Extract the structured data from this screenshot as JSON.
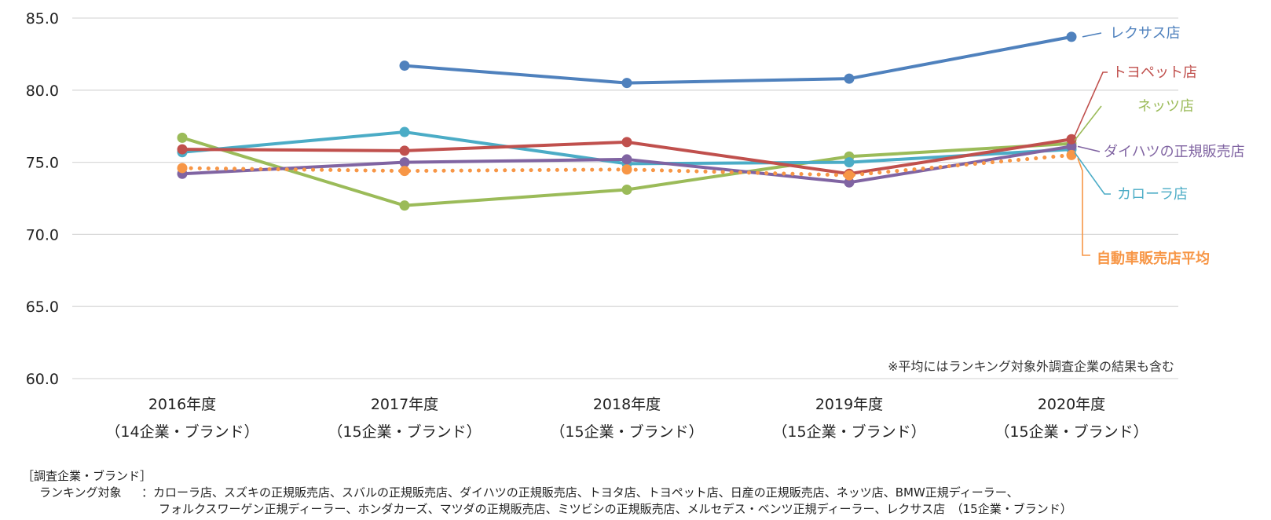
{
  "chart_data": {
    "type": "line",
    "title": "",
    "categories": [
      "2016年度",
      "2017年度",
      "2018年度",
      "2019年度",
      "2020年度"
    ],
    "category_sublabels": [
      "（14企業・ブランド）",
      "（15企業・ブランド）",
      "（15企業・ブランド）",
      "（15企業・ブランド）",
      "（15企業・ブランド）"
    ],
    "ylim": [
      60.0,
      85.0
    ],
    "yticks": [
      "60.0",
      "65.0",
      "70.0",
      "75.0",
      "80.0",
      "85.0"
    ],
    "grid": true,
    "series": [
      {
        "name": "レクサス店",
        "color": "#4F81BD",
        "style": "solid",
        "values": [
          null,
          81.7,
          80.5,
          80.8,
          83.7
        ]
      },
      {
        "name": "トヨペット店",
        "color": "#C0504D",
        "style": "solid",
        "values": [
          75.9,
          75.8,
          76.4,
          74.2,
          76.6
        ]
      },
      {
        "name": "ネッツ店",
        "color": "#9BBB59",
        "style": "solid",
        "values": [
          76.7,
          72.0,
          73.1,
          75.4,
          76.3
        ]
      },
      {
        "name": "ダイハツの正規販売店",
        "color": "#8064A2",
        "style": "solid",
        "values": [
          74.2,
          75.0,
          75.2,
          73.6,
          76.1
        ]
      },
      {
        "name": "カローラ店",
        "color": "#4BACC6",
        "style": "solid",
        "values": [
          75.7,
          77.1,
          74.9,
          75.0,
          75.9
        ]
      },
      {
        "name": "自動車販売店平均",
        "color": "#F79646",
        "style": "dotted",
        "values": [
          74.6,
          74.4,
          74.5,
          74.1,
          75.5
        ]
      }
    ],
    "note": "※平均にはランキング対象外調査企業の結果も含む"
  },
  "footer": {
    "heading": "［調査企業・ブランド］",
    "label": "ランキング対象",
    "line1": "：カローラ店、スズキの正規販売店、スバルの正規販売店、ダイハツの正規販売店、トヨタ店、トヨペット店、日産の正規販売店、ネッツ店、BMW正規ディーラー、",
    "line2": "フォルクスワーゲン正規ディーラー、ホンダカーズ、マツダの正規販売店、ミツビシの正規販売店、メルセデス・ベンツ正規ディーラー、レクサス店　（15企業・ブランド）"
  }
}
